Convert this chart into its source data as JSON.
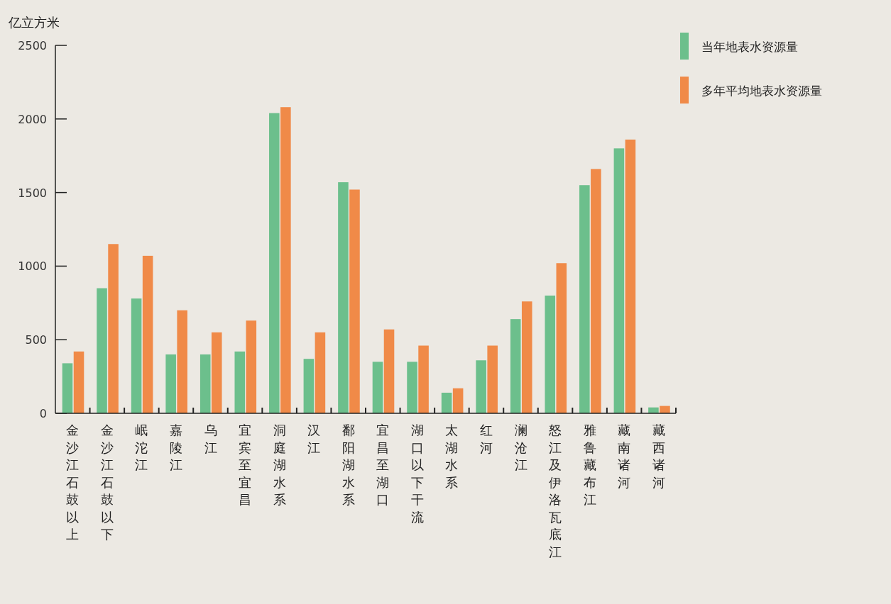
{
  "chart_data": {
    "type": "bar",
    "ylabel": "亿立方米",
    "categories": [
      "金沙江石鼓以上",
      "金沙江石鼓以下",
      "岷沱江",
      "嘉陵江",
      "乌江",
      "宜宾至宜昌",
      "洞庭湖水系",
      "汉江",
      "鄱阳湖水系",
      "宜昌至湖口",
      "湖口以下干流",
      "太湖水系",
      "红河",
      "澜沧江",
      "怒江及伊洛瓦底江",
      "雅鲁藏布江",
      "藏南诸河",
      "藏西诸河"
    ],
    "series": [
      {
        "name": "当年地表水资源量",
        "color": "#6cbf8c",
        "values": [
          340,
          850,
          780,
          400,
          400,
          420,
          2040,
          370,
          1570,
          350,
          350,
          140,
          360,
          640,
          800,
          1550,
          1800,
          40
        ]
      },
      {
        "name": "多年平均地表水资源量",
        "color": "#f08a48",
        "values": [
          420,
          1150,
          1070,
          700,
          550,
          630,
          2080,
          550,
          1520,
          570,
          460,
          170,
          460,
          760,
          1020,
          1660,
          1860,
          50
        ]
      }
    ],
    "ylim": [
      0,
      2500
    ],
    "yticks": [
      0,
      500,
      1000,
      1500,
      2000,
      2500
    ],
    "grid": false,
    "legend": "top right"
  }
}
